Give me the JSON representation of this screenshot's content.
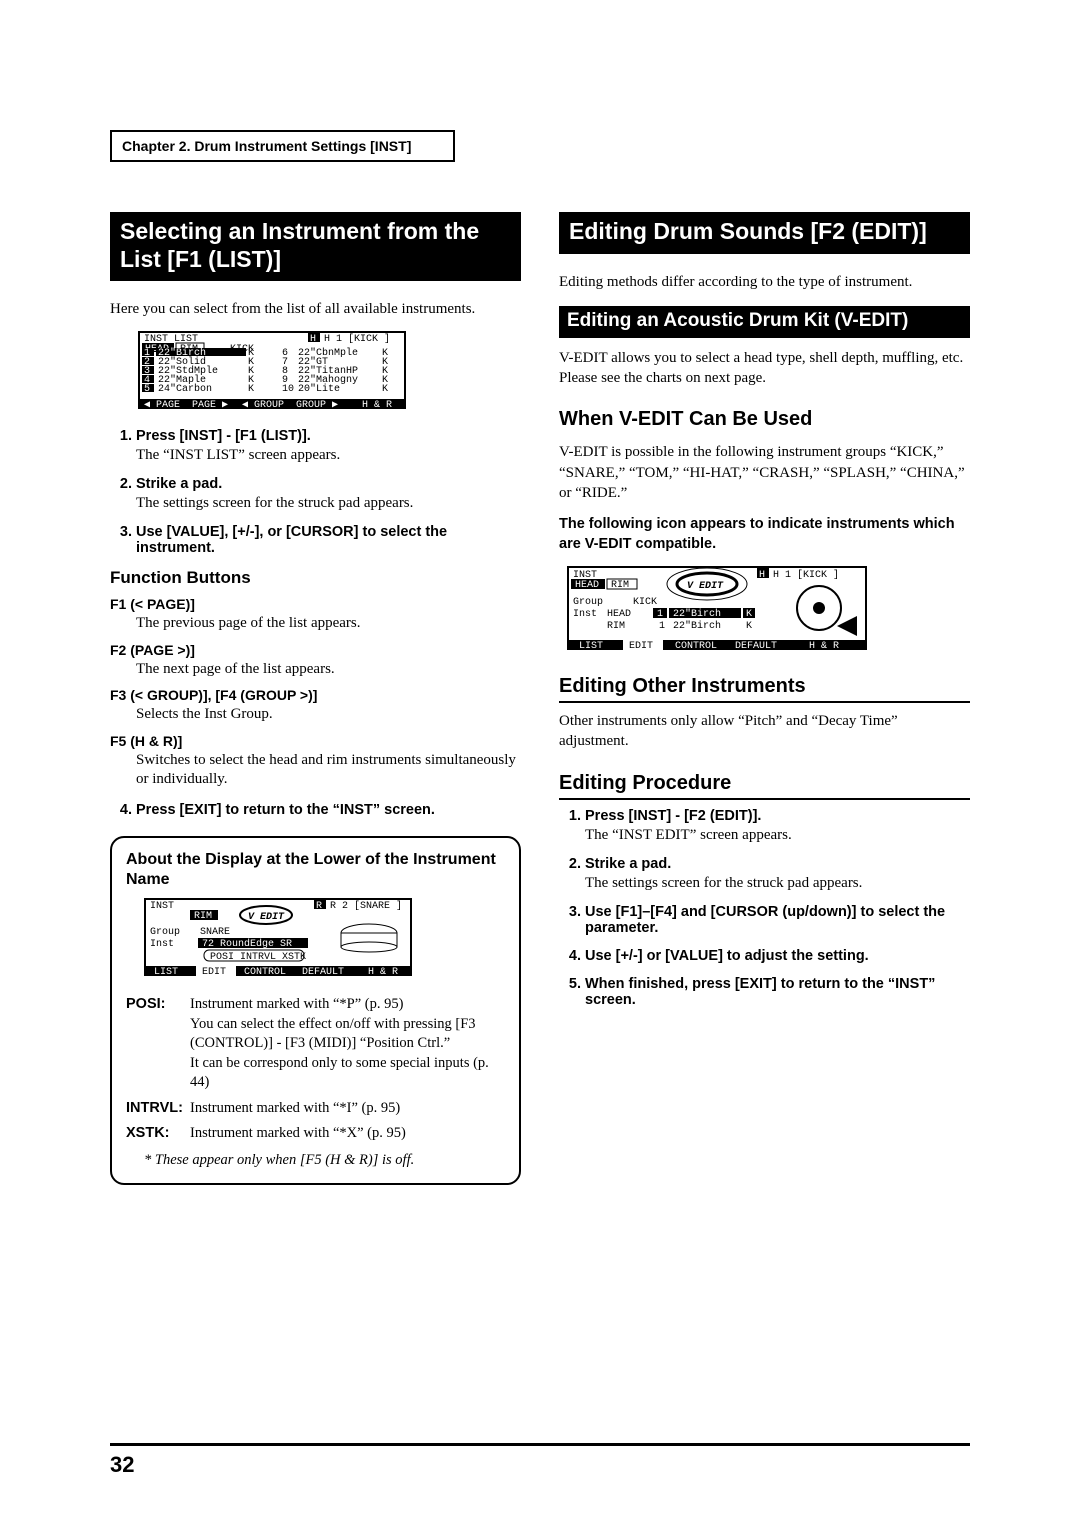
{
  "chapter_label": "Chapter 2. Drum Instrument Settings [INST]",
  "page_number": "32",
  "left": {
    "title": "Selecting an Instrument from the List [F1 (LIST)]",
    "intro": "Here you can select from the list of all available instruments.",
    "lcd_list": {
      "header": "INST LIST",
      "tabs": [
        "HEAD",
        "RIM"
      ],
      "group_label": "KICK",
      "corner": "H 1 [KICK   ]",
      "rows_left": [
        {
          "n": "1",
          "name": "22\"Birch",
          "k": "K"
        },
        {
          "n": "2",
          "name": "22\"Solid",
          "k": "K"
        },
        {
          "n": "3",
          "name": "22\"StdMple",
          "k": "K"
        },
        {
          "n": "4",
          "name": "22\"Maple",
          "k": "K"
        },
        {
          "n": "5",
          "name": "24\"Carbon",
          "k": "K"
        }
      ],
      "rows_right": [
        {
          "n": "6",
          "name": "22\"CbnMple",
          "k": "K"
        },
        {
          "n": "7",
          "name": "22\"GT",
          "k": "K"
        },
        {
          "n": "8",
          "name": "22\"TitanHP",
          "k": "K"
        },
        {
          "n": "9",
          "name": "22\"Mahogny",
          "k": "K"
        },
        {
          "n": "10",
          "name": "20\"Lite",
          "k": "K"
        }
      ],
      "fkeys": [
        "◀ PAGE",
        "PAGE ▶",
        "◀ GROUP",
        "GROUP ▶",
        "H & R"
      ]
    },
    "steps1": [
      {
        "t": "Press [INST] - [F1 (LIST)].",
        "b": "The “INST LIST” screen appears."
      },
      {
        "t": "Strike a pad.",
        "b": "The settings screen for the struck pad appears."
      },
      {
        "t": "Use [VALUE], [+/-], or [CURSOR] to select the instrument.",
        "b": ""
      }
    ],
    "func_title": "Function Buttons",
    "func": [
      {
        "t": "F1 (< PAGE)]",
        "d": "The previous page of the list appears."
      },
      {
        "t": "F2 (PAGE >)]",
        "d": "The next page of the list appears."
      },
      {
        "t": "F3 (< GROUP)], [F4 (GROUP >)]",
        "d": "Selects the Inst Group."
      },
      {
        "t": "F5 (H & R)]",
        "d": "Switches to select the head and rim instruments simultaneously or individually."
      }
    ],
    "step4": {
      "t": "Press [EXIT] to return to the “INST” screen.",
      "b": ""
    },
    "box": {
      "title": "About the Display at the Lower of the Instrument Name",
      "lcd": {
        "header": "INST",
        "tab": "RIM",
        "vedit": "V EDIT",
        "corner": "R 2 [SNARE  ]",
        "group_lbl": "Group",
        "group_val": "SNARE",
        "inst_lbl": "Inst",
        "inst_val": "72 RoundEdge SR",
        "sub": "POSI INTRVL XSTK",
        "fkeys": [
          "LIST",
          "EDIT",
          "CONTROL",
          "DEFAULT",
          "H & R"
        ]
      },
      "defs": [
        {
          "dt": "POSI:",
          "dd": "Instrument marked with “*P” (p. 95)\nYou can select the effect on/off with pressing [F3 (CONTROL)] - [F3 (MIDI)] “Position Ctrl.”\nIt can be correspond only to some special inputs (p. 44)"
        },
        {
          "dt": "INTRVL:",
          "dd": "Instrument marked with “*I” (p. 95)"
        },
        {
          "dt": "XSTK:",
          "dd": "Instrument marked with “*X” (p. 95)"
        }
      ],
      "note": "*   These appear only when [F5 (H & R)] is off."
    }
  },
  "right": {
    "title": "Editing Drum Sounds [F2 (EDIT)]",
    "intro": "Editing methods differ according to the type of instrument.",
    "sub1_title": "Editing an Acoustic Drum Kit (V-EDIT)",
    "sub1_body": "V-EDIT allows you to select a head type, shell depth, muffling, etc. Please see the charts on next page.",
    "when_title": "When V-EDIT Can Be Used",
    "when_body": "V-EDIT is possible in the following instrument groups “KICK,” “SNARE,” “TOM,” “HI-HAT,” “CRASH,” “SPLASH,” “CHINA,” or “RIDE.”",
    "when_bold": "The following icon appears to indicate instruments which are V-EDIT compatible.",
    "lcd": {
      "header": "INST",
      "tabs": [
        "HEAD",
        "RIM"
      ],
      "vedit": "V EDIT",
      "corner": "H 1 [KICK   ]",
      "group_lbl": "Group",
      "group_val": "KICK",
      "inst_lbl": "Inst",
      "rows": [
        {
          "side": "HEAD",
          "n": "1",
          "name": "22\"Birch",
          "k": "K"
        },
        {
          "side": "RIM",
          "n": "1",
          "name": "22\"Birch",
          "k": "K"
        }
      ],
      "fkeys": [
        "LIST",
        "EDIT",
        "CONTROL",
        "DEFAULT",
        "H & R"
      ]
    },
    "other_title": "Editing Other Instruments",
    "other_body": "Other instruments only allow “Pitch” and “Decay Time” adjustment.",
    "proc_title": "Editing Procedure",
    "proc_steps": [
      {
        "t": "Press [INST] - [F2 (EDIT)].",
        "b": "The “INST EDIT” screen appears."
      },
      {
        "t": "Strike a pad.",
        "b": "The settings screen for the struck pad appears."
      },
      {
        "t": "Use [F1]–[F4] and [CURSOR (up/down)] to select the parameter.",
        "b": ""
      },
      {
        "t": "Use [+/-] or [VALUE] to adjust the setting.",
        "b": ""
      },
      {
        "t": "When finished, press [EXIT] to return to the “INST” screen.",
        "b": ""
      }
    ]
  }
}
